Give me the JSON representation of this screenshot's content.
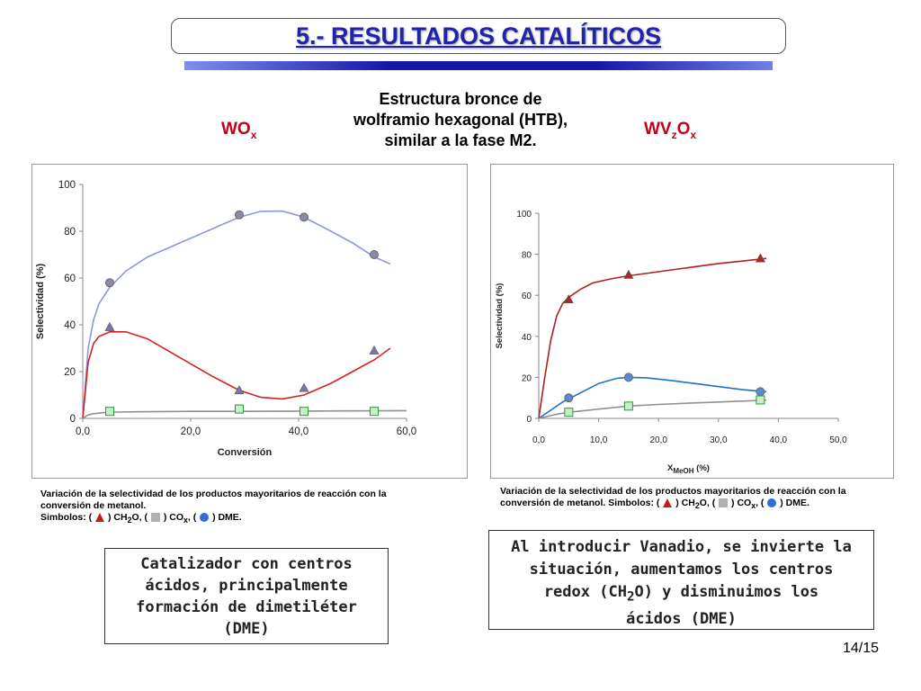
{
  "header": {
    "title": "5.- RESULTADOS CATALÍTICOS"
  },
  "structure_text": [
    "Estructura bronce de",
    "wolframio hexagonal (HTB),",
    "similar a la fase M2."
  ],
  "labels": {
    "wox": {
      "base": "WO",
      "sub": "x"
    },
    "wvzox": {
      "base": "WV",
      "sub1": "z",
      "mid": "O",
      "sub2": "x"
    }
  },
  "colors": {
    "title": "#1f24a8",
    "label_red": "#c0001c",
    "dme_line": "#8c96e0",
    "ch2o_line": "#d62020",
    "cox_line": "#909090",
    "dme_line2": "#1e73c4",
    "ch2o_line2": "#b01e1e"
  },
  "chart_data": [
    {
      "type": "line",
      "title": "",
      "xlabel": "Conversión",
      "ylabel": "Selectividad (%)",
      "xlim": [
        0,
        60
      ],
      "ylim": [
        0,
        100
      ],
      "xticks": [
        "0,0",
        "20,0",
        "40,0",
        "60,0"
      ],
      "yticks": [
        "0",
        "20",
        "40",
        "60",
        "80",
        "100"
      ],
      "series": [
        {
          "marker": "circle",
          "x": [
            5,
            29,
            41,
            54
          ],
          "y": [
            58,
            87,
            86,
            70
          ]
        },
        {
          "marker": "triangle",
          "x": [
            5,
            29,
            41,
            54
          ],
          "y": [
            39,
            12,
            13,
            29
          ]
        },
        {
          "marker": "square",
          "x": [
            5,
            29,
            41,
            54
          ],
          "y": [
            3,
            4,
            3,
            3
          ]
        }
      ],
      "curves": [
        {
          "x": [
            0,
            0.5,
            1,
            2,
            3,
            5,
            8,
            12,
            18,
            24,
            29,
            33,
            37,
            41,
            46,
            50,
            54,
            57
          ],
          "y": [
            0,
            15,
            30,
            42,
            49,
            56,
            63,
            69,
            75,
            81,
            86,
            88.5,
            88.6,
            86,
            80,
            75,
            69,
            66
          ]
        },
        {
          "x": [
            0,
            0.5,
            1,
            2,
            3,
            5,
            8,
            12,
            18,
            24,
            29,
            33,
            37,
            41,
            46,
            50,
            54,
            57
          ],
          "y": [
            0,
            12,
            24,
            32,
            35,
            37,
            37,
            34,
            26,
            18,
            12,
            9,
            8.3,
            10,
            15,
            20,
            25,
            30
          ]
        },
        {
          "x": [
            0,
            1,
            2,
            4,
            6,
            10,
            20,
            30,
            40,
            50,
            60
          ],
          "y": [
            0,
            1.5,
            2,
            2.5,
            2.7,
            2.8,
            3,
            3,
            3.1,
            3.2,
            3.3
          ]
        }
      ]
    },
    {
      "type": "line",
      "title": "",
      "xlabel": "XMeOH (%)",
      "ylabel": "Selectividad (%)",
      "xlim": [
        0,
        50
      ],
      "ylim": [
        0,
        100
      ],
      "xticks": [
        "0,0",
        "10,0",
        "20,0",
        "30,0",
        "40,0",
        "50,0"
      ],
      "yticks": [
        "0",
        "20",
        "40",
        "60",
        "80",
        "100"
      ],
      "series": [
        {
          "marker": "triangle",
          "x": [
            5,
            15,
            37
          ],
          "y": [
            58,
            70,
            78
          ]
        },
        {
          "marker": "circle",
          "x": [
            5,
            15,
            37
          ],
          "y": [
            10,
            20,
            13
          ]
        },
        {
          "marker": "square",
          "x": [
            5,
            15,
            37
          ],
          "y": [
            3,
            6,
            9
          ]
        }
      ],
      "curves": [
        {
          "x": [
            0,
            1,
            2,
            3,
            4,
            5,
            7,
            9,
            12,
            15,
            20,
            25,
            30,
            35,
            38
          ],
          "y": [
            0,
            20,
            38,
            50,
            56,
            59,
            63,
            66,
            68,
            69.5,
            71.5,
            73.5,
            75.5,
            77,
            78
          ]
        },
        {
          "x": [
            0,
            2,
            4,
            6,
            8,
            10,
            13,
            15,
            18,
            22,
            26,
            30,
            34,
            38
          ],
          "y": [
            0,
            4,
            8,
            11,
            14,
            17,
            19.5,
            20,
            19.8,
            18.5,
            17,
            15.5,
            14,
            13
          ]
        },
        {
          "x": [
            0,
            3,
            5,
            10,
            15,
            20,
            25,
            30,
            35,
            38
          ],
          "y": [
            0,
            2,
            3,
            4.5,
            6,
            6.8,
            7.4,
            8,
            8.5,
            9
          ]
        }
      ]
    }
  ],
  "captions": {
    "left": {
      "line1": "Variación de la selectividad de los productos mayoritarios de reacción con la",
      "line2": "conversión de metanol.",
      "simbolos": "Simbolos: (",
      "ch2o": ") CH",
      "ch2o_sub": "2",
      "ch2o_end": "O, (",
      "cox": ") CO",
      "cox_sub": "x",
      "cox_end": ", (",
      "dme": ") DME."
    },
    "right": {
      "line1": "Variación de la selectividad de los productos mayoritarios de reacción con la",
      "line2": "conversión de metanol. Simbolos: (",
      "ch2o": ") CH",
      "ch2o_sub": "2",
      "ch2o_end": "O, (",
      "cox": ")  CO",
      "cox_sub": "x",
      "cox_end": ", (",
      "dme": ") DME."
    }
  },
  "box_left": [
    "Catalizador con centros",
    "ácidos, principalmente",
    "formación de dimetiléter",
    "(DME)"
  ],
  "box_right": {
    "line1": "Al introducir Vanadio, se invierte la",
    "line2": "situación,  aumentamos los centros",
    "line3a": "redox (CH",
    "line3sub": "2",
    "line3b": "O) y disminuimos los",
    "line4": "ácidos (DME)"
  },
  "page_number": "14/15"
}
